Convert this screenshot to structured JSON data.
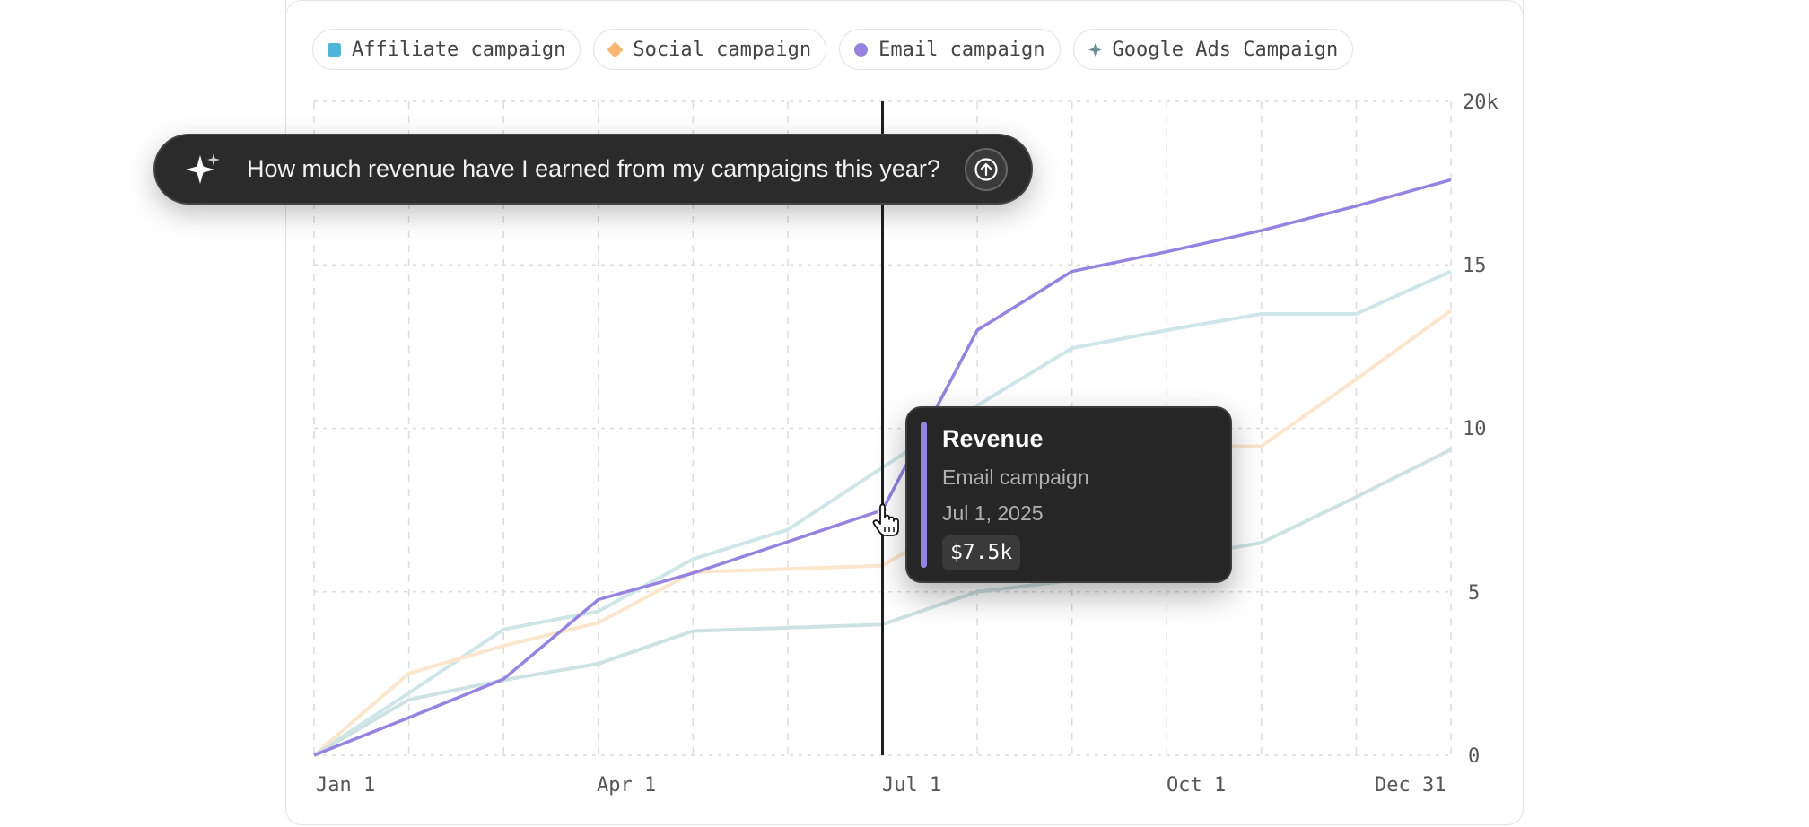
{
  "legend": [
    {
      "label": "Affiliate campaign",
      "color": "#4fb5d8",
      "shape": "square"
    },
    {
      "label": "Social campaign",
      "color": "#f5b86e",
      "shape": "diamond"
    },
    {
      "label": "Email campaign",
      "color": "#9683e0",
      "shape": "circle"
    },
    {
      "label": "Google Ads Campaign",
      "color": "#6d8e91",
      "shape": "star"
    }
  ],
  "prompt": {
    "icon": "sparkle-icon",
    "text": "How much revenue have I earned from my campaigns this year?",
    "send_icon": "arrow-up-circle-icon"
  },
  "tooltip": {
    "title": "Revenue",
    "series": "Email campaign",
    "date": "Jul 1, 2025",
    "value": "$7.5k",
    "color": "#9683e0"
  },
  "chart_data": {
    "type": "line",
    "x": [
      "Jan 1",
      "Feb 1",
      "Mar 1",
      "Apr 1",
      "May 1",
      "Jun 1",
      "Jul 1",
      "Aug 1",
      "Sep 1",
      "Oct 1",
      "Nov 1",
      "Dec 1",
      "Dec 31"
    ],
    "x_tick_labels": [
      "Jan 1",
      "Apr 1",
      "Jul 1",
      "Oct 1",
      "Dec 31"
    ],
    "y_tick_labels": [
      "0",
      "5",
      "10",
      "15",
      "20k"
    ],
    "ylim": [
      0,
      20
    ],
    "grid": true,
    "legend_position": "top-left",
    "highlight": {
      "series": "Email campaign",
      "x": "Jul 1"
    },
    "series": [
      {
        "name": "Affiliate campaign",
        "color": "#cfe6e9",
        "values": [
          0,
          1.9,
          3.85,
          4.4,
          6.0,
          6.9,
          8.8,
          10.7,
          12.45,
          13.0,
          13.5,
          13.5,
          14.8
        ]
      },
      {
        "name": "Social campaign",
        "color": "#fbe6cd",
        "values": [
          0,
          2.5,
          3.35,
          4.05,
          5.6,
          5.7,
          5.8,
          7.5,
          9.0,
          9.45,
          9.45,
          11.5,
          13.6
        ]
      },
      {
        "name": "Google Ads Campaign",
        "color": "#cfe2e3",
        "values": [
          0,
          1.7,
          2.3,
          2.8,
          3.8,
          3.9,
          4.0,
          5.0,
          5.35,
          6.0,
          6.5,
          7.9,
          9.35
        ]
      },
      {
        "name": "Email campaign",
        "color": "#9683e0",
        "values": [
          0,
          1.15,
          2.33,
          4.76,
          5.57,
          6.53,
          7.5,
          13.0,
          14.8,
          15.4,
          16.05,
          16.8,
          17.6
        ]
      }
    ]
  }
}
